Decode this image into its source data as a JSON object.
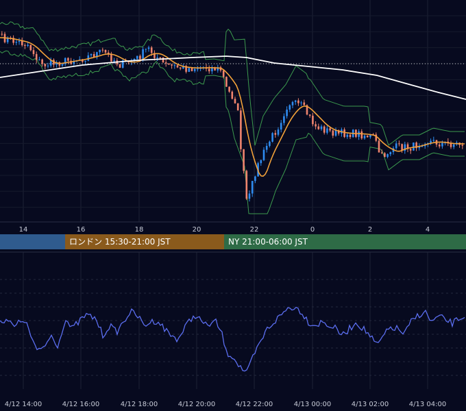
{
  "chart_data": [
    {
      "type": "candlestick",
      "title": "",
      "x_ticks": [
        "14",
        "16",
        "18",
        "20",
        "22",
        "0",
        "2",
        "4"
      ],
      "overlays": [
        "bollinger-bands",
        "short-ma",
        "long-ma",
        "dotted-reference-line"
      ],
      "colors": {
        "up_candle": "#2f8cf0",
        "down_candle": "#f0846e",
        "bollinger": "#3c9a4e",
        "short_ma": "#f3a23a",
        "long_ma": "#ffffff",
        "reference_line": "#d8d8d8"
      },
      "grid": true
    },
    {
      "type": "line",
      "title": "",
      "x_ticks": [
        "4/12 14:00",
        "4/12 16:00",
        "4/12 18:00",
        "4/12 20:00",
        "4/12 22:00",
        "4/13 00:00",
        "4/13 02:00",
        "4/13 04:00"
      ],
      "colors": {
        "line": "#5b6ef0"
      },
      "grid": true
    }
  ],
  "sessions": [
    {
      "label": "",
      "color": "#2f5b8e"
    },
    {
      "label": "ロンドン 15:30-21:00 JST",
      "color": "#8a5a1c"
    },
    {
      "label": "NY 21:00-06:00 JST",
      "color": "#2e6b46"
    }
  ]
}
